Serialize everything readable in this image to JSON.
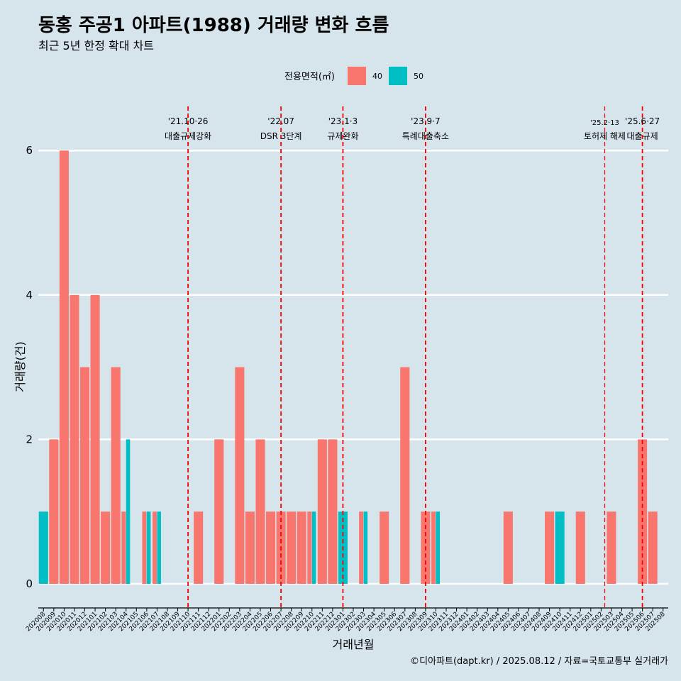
{
  "chart_data": {
    "type": "bar",
    "title": "동홍 주공1 아파트(1988) 거래량 변화 흐름",
    "subtitle": "최근 5년 한정 확대 차트",
    "xlabel": "거래년월",
    "ylabel": "거래량(건)",
    "ylim": [
      0,
      6
    ],
    "yticks": [
      0,
      2,
      4,
      6
    ],
    "grid": true,
    "legend": {
      "title": "전용면적(㎡)",
      "position": "top",
      "entries": [
        "40",
        "50"
      ]
    },
    "colors": {
      "40": "#f8766d",
      "50": "#00bfc4"
    },
    "categories": [
      "202008",
      "202009",
      "202010",
      "202011",
      "202012",
      "202101",
      "202102",
      "202103",
      "202104",
      "202105",
      "202106",
      "202107",
      "202108",
      "202109",
      "202110",
      "202111",
      "202112",
      "202201",
      "202202",
      "202203",
      "202204",
      "202205",
      "202206",
      "202207",
      "202208",
      "202209",
      "202210",
      "202211",
      "202212",
      "202301",
      "202302",
      "202303",
      "202304",
      "202305",
      "202306",
      "202307",
      "202308",
      "202309",
      "202310",
      "202311",
      "202312",
      "202401",
      "202402",
      "202403",
      "202404",
      "202405",
      "202406",
      "202407",
      "202408",
      "202409",
      "202410",
      "202411",
      "202412",
      "202501",
      "202502",
      "202503",
      "202504",
      "202505",
      "202506",
      "202507",
      "202508"
    ],
    "series": [
      {
        "name": "40",
        "values": [
          0,
          2,
          6,
          4,
          3,
          4,
          1,
          3,
          1,
          0,
          1,
          1,
          0,
          0,
          0,
          1,
          0,
          2,
          0,
          3,
          1,
          2,
          1,
          1,
          1,
          1,
          1,
          2,
          2,
          0,
          0,
          1,
          0,
          1,
          0,
          3,
          0,
          1,
          1,
          0,
          0,
          0,
          0,
          0,
          0,
          1,
          0,
          0,
          0,
          1,
          0,
          0,
          1,
          0,
          0,
          1,
          0,
          0,
          2,
          1,
          0
        ]
      },
      {
        "name": "50",
        "values": [
          1,
          0,
          0,
          0,
          0,
          0,
          0,
          0,
          2,
          0,
          1,
          1,
          0,
          0,
          0,
          0,
          0,
          0,
          0,
          0,
          0,
          0,
          0,
          0,
          0,
          0,
          1,
          0,
          0,
          1,
          0,
          1,
          0,
          0,
          0,
          0,
          0,
          0,
          1,
          0,
          0,
          0,
          0,
          0,
          0,
          0,
          0,
          0,
          0,
          0,
          1,
          0,
          0,
          0,
          0,
          0,
          0,
          0,
          0,
          0,
          0
        ]
      }
    ],
    "annotations": [
      {
        "category": "202110",
        "date": "'21.10·26",
        "label": "대출규제강화"
      },
      {
        "category": "202207",
        "date": "'22.07",
        "label": "DSR 3단계"
      },
      {
        "category": "202301",
        "date": "'23.1·3",
        "label": "규제완화"
      },
      {
        "category": "202309",
        "date": "'23.9·7",
        "label": "특례대출축소"
      },
      {
        "category": "202502",
        "date": "'25.2·13",
        "label": "토허제 해제",
        "small": true
      },
      {
        "category": "202506",
        "date": "'25.6·27",
        "label": "대출규제"
      }
    ]
  },
  "caption": "©디아파트(dapt.kr) / 2025.08.12 / 자료=국토교통부 실거래가"
}
